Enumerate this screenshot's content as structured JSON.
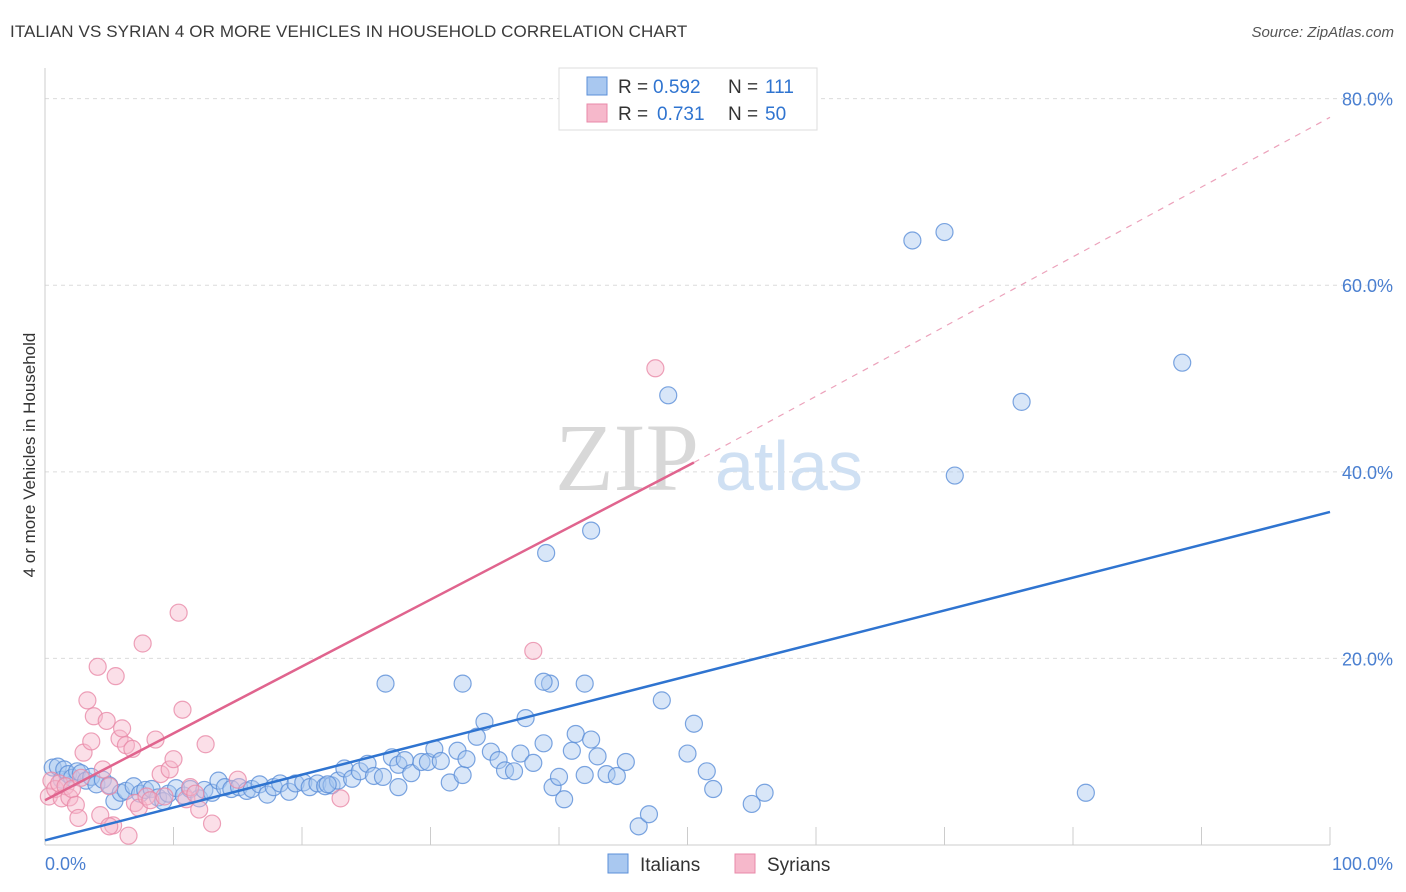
{
  "header": {
    "title": "ITALIAN VS SYRIAN 4 OR MORE VEHICLES IN HOUSEHOLD CORRELATION CHART",
    "source": "Source: ZipAtlas.com"
  },
  "watermark": {
    "zip": "ZIP",
    "atlas": "atlas"
  },
  "colors": {
    "italians_fill": "#a9c8f0",
    "italians_stroke": "#5b8fd8",
    "italians_line": "#2f74d0",
    "syrians_fill": "#f6b8cb",
    "syrians_stroke": "#e889a8",
    "syrians_line": "#e0648e",
    "tick_label": "#4a7fd0",
    "grid": "#dcdcdc"
  },
  "legend": {
    "rows": [
      {
        "r_label": "R = ",
        "r_value": "0.592",
        "n_label": "N = ",
        "n_value": "111"
      },
      {
        "r_label": "R = ",
        "r_value": "0.731",
        "n_label": "N = ",
        "n_value": "50"
      }
    ]
  },
  "chart_data": {
    "type": "scatter",
    "title": "ITALIAN VS SYRIAN 4 OR MORE VEHICLES IN HOUSEHOLD CORRELATION CHART",
    "xlabel": "",
    "ylabel": "4 or more Vehicles in Household",
    "xlim": [
      0,
      100
    ],
    "ylim": [
      0,
      82
    ],
    "x_tick_labels": [
      {
        "value": 0,
        "label": "0.0%"
      },
      {
        "value": 100,
        "label": "100.0%"
      }
    ],
    "y_tick_labels": [
      {
        "value": 20,
        "label": "20.0%"
      },
      {
        "value": 40,
        "label": "40.0%"
      },
      {
        "value": 60,
        "label": "60.0%"
      },
      {
        "value": 80,
        "label": "80.0%"
      }
    ],
    "grid": true,
    "legend_position": "top-center",
    "series": [
      {
        "name": "Italians",
        "r": 0.592,
        "n": 111,
        "trend": {
          "x": [
            0,
            100
          ],
          "y": [
            0.5,
            35.7
          ]
        },
        "points": [
          [
            0.6,
            8.3
          ],
          [
            1.0,
            8.4
          ],
          [
            1.3,
            7.0
          ],
          [
            1.5,
            8.1
          ],
          [
            1.8,
            7.6
          ],
          [
            2.1,
            7.2
          ],
          [
            2.5,
            7.9
          ],
          [
            2.8,
            7.7
          ],
          [
            3.2,
            6.9
          ],
          [
            3.6,
            7.3
          ],
          [
            4.0,
            6.5
          ],
          [
            4.5,
            7.0
          ],
          [
            5.0,
            6.4
          ],
          [
            5.4,
            4.7
          ],
          [
            5.9,
            5.6
          ],
          [
            6.3,
            5.8
          ],
          [
            6.9,
            6.3
          ],
          [
            7.4,
            5.5
          ],
          [
            7.8,
            5.9
          ],
          [
            8.3,
            6.0
          ],
          [
            8.8,
            5.1
          ],
          [
            9.2,
            4.7
          ],
          [
            9.6,
            5.5
          ],
          [
            10.2,
            6.1
          ],
          [
            10.8,
            5.3
          ],
          [
            11.3,
            6.0
          ],
          [
            12.0,
            5.0
          ],
          [
            12.4,
            5.9
          ],
          [
            13.0,
            5.6
          ],
          [
            13.5,
            6.9
          ],
          [
            14.0,
            6.2
          ],
          [
            14.5,
            6.0
          ],
          [
            15.1,
            6.2
          ],
          [
            15.7,
            5.8
          ],
          [
            16.1,
            6.0
          ],
          [
            16.7,
            6.5
          ],
          [
            17.3,
            5.4
          ],
          [
            17.8,
            6.2
          ],
          [
            18.3,
            6.6
          ],
          [
            19.0,
            5.7
          ],
          [
            19.5,
            6.6
          ],
          [
            20.1,
            6.7
          ],
          [
            20.6,
            6.2
          ],
          [
            21.2,
            6.6
          ],
          [
            21.8,
            6.3
          ],
          [
            22.3,
            6.4
          ],
          [
            22.8,
            6.9
          ],
          [
            23.3,
            8.2
          ],
          [
            23.9,
            7.1
          ],
          [
            24.5,
            7.9
          ],
          [
            25.1,
            8.7
          ],
          [
            25.6,
            7.4
          ],
          [
            26.3,
            7.3
          ],
          [
            27.0,
            9.4
          ],
          [
            27.5,
            8.6
          ],
          [
            28.0,
            9.1
          ],
          [
            28.5,
            7.7
          ],
          [
            29.3,
            8.9
          ],
          [
            29.8,
            8.9
          ],
          [
            30.3,
            10.3
          ],
          [
            30.8,
            9.0
          ],
          [
            31.5,
            6.7
          ],
          [
            32.1,
            10.1
          ],
          [
            32.5,
            7.5
          ],
          [
            32.8,
            9.2
          ],
          [
            33.6,
            11.6
          ],
          [
            34.2,
            13.2
          ],
          [
            34.7,
            10.0
          ],
          [
            35.3,
            9.1
          ],
          [
            35.8,
            8.0
          ],
          [
            36.5,
            7.9
          ],
          [
            37.0,
            9.8
          ],
          [
            37.4,
            13.6
          ],
          [
            38.0,
            8.8
          ],
          [
            38.8,
            10.9
          ],
          [
            39.5,
            6.2
          ],
          [
            40.0,
            7.3
          ],
          [
            40.4,
            4.9
          ],
          [
            41.0,
            10.1
          ],
          [
            41.3,
            11.9
          ],
          [
            42.0,
            7.5
          ],
          [
            42.5,
            11.3
          ],
          [
            43.0,
            9.5
          ],
          [
            43.7,
            7.6
          ],
          [
            44.5,
            7.4
          ],
          [
            45.2,
            8.9
          ],
          [
            46.2,
            2.0
          ],
          [
            47.0,
            3.3
          ],
          [
            48.0,
            15.5
          ],
          [
            48.5,
            48.2
          ],
          [
            50.0,
            9.8
          ],
          [
            50.5,
            13.0
          ],
          [
            51.5,
            7.9
          ],
          [
            52.0,
            6.0
          ],
          [
            55.0,
            4.4
          ],
          [
            56.0,
            5.6
          ],
          [
            67.5,
            64.8
          ],
          [
            70.0,
            65.7
          ],
          [
            70.8,
            39.6
          ],
          [
            76.0,
            47.5
          ],
          [
            81.0,
            5.6
          ],
          [
            88.5,
            51.7
          ],
          [
            42.5,
            33.7
          ],
          [
            39.0,
            31.3
          ],
          [
            39.3,
            17.3
          ],
          [
            42.0,
            17.3
          ],
          [
            38.8,
            17.5
          ],
          [
            26.5,
            17.3
          ],
          [
            32.5,
            17.3
          ],
          [
            22.0,
            6.5
          ],
          [
            27.5,
            6.2
          ]
        ]
      },
      {
        "name": "Syrians",
        "r": 0.731,
        "n": 50,
        "trend": {
          "x": [
            0,
            50.5,
            100
          ],
          "y": [
            4.8,
            41.0,
            78.0
          ]
        },
        "points": [
          [
            0.3,
            5.2
          ],
          [
            0.5,
            6.9
          ],
          [
            0.8,
            6.0
          ],
          [
            1.1,
            6.6
          ],
          [
            1.3,
            5.0
          ],
          [
            1.6,
            6.3
          ],
          [
            1.9,
            5.1
          ],
          [
            2.1,
            6.0
          ],
          [
            2.4,
            4.3
          ],
          [
            2.6,
            2.9
          ],
          [
            2.8,
            7.2
          ],
          [
            3.0,
            9.9
          ],
          [
            3.3,
            15.5
          ],
          [
            3.6,
            11.1
          ],
          [
            3.8,
            13.8
          ],
          [
            4.1,
            19.1
          ],
          [
            4.3,
            3.2
          ],
          [
            4.5,
            8.1
          ],
          [
            4.8,
            13.3
          ],
          [
            5.0,
            6.3
          ],
          [
            5.3,
            2.1
          ],
          [
            5.5,
            18.1
          ],
          [
            5.8,
            11.4
          ],
          [
            6.0,
            12.5
          ],
          [
            6.3,
            10.7
          ],
          [
            6.5,
            1.0
          ],
          [
            6.8,
            10.3
          ],
          [
            7.0,
            4.5
          ],
          [
            7.3,
            4.0
          ],
          [
            7.6,
            21.6
          ],
          [
            7.9,
            5.2
          ],
          [
            8.2,
            4.8
          ],
          [
            8.6,
            11.3
          ],
          [
            9.0,
            7.6
          ],
          [
            9.3,
            5.2
          ],
          [
            9.7,
            8.1
          ],
          [
            10.0,
            9.2
          ],
          [
            10.4,
            24.9
          ],
          [
            10.7,
            14.5
          ],
          [
            11.0,
            4.9
          ],
          [
            11.3,
            6.2
          ],
          [
            11.7,
            5.5
          ],
          [
            12.0,
            3.8
          ],
          [
            12.5,
            10.8
          ],
          [
            13.0,
            2.3
          ],
          [
            15.0,
            7.0
          ],
          [
            23.0,
            5.0
          ],
          [
            38.0,
            20.8
          ],
          [
            47.5,
            51.1
          ],
          [
            5.0,
            2.0
          ]
        ]
      }
    ]
  },
  "bottom_legend": {
    "items": [
      {
        "label": "Italians"
      },
      {
        "label": "Syrians"
      }
    ]
  }
}
